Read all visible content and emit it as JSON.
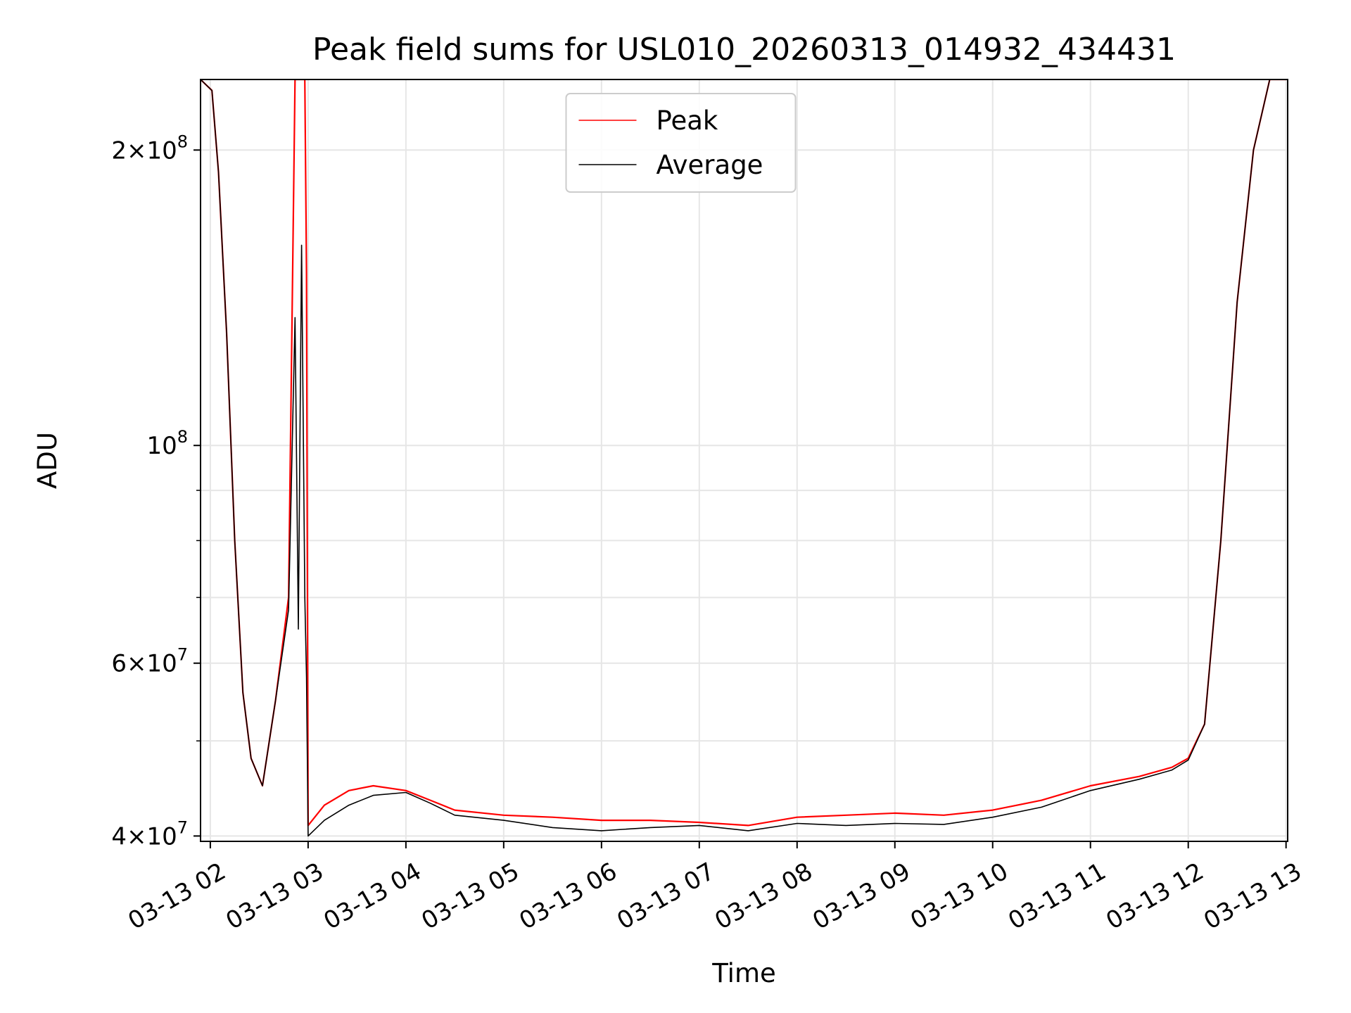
{
  "chart_data": {
    "type": "line",
    "title": "Peak field sums for USL010_20260313_014932_434431",
    "xlabel": "Time",
    "ylabel": "ADU",
    "yscale": "log",
    "xlim": [
      "2026-03-13T01:54",
      "2026-03-13T13:01"
    ],
    "ylim": [
      39500000,
      236000000
    ],
    "grid": true,
    "legend_position": "upper center",
    "x_tick_labels": [
      "03-13 02",
      "03-13 03",
      "03-13 04",
      "03-13 05",
      "03-13 06",
      "03-13 07",
      "03-13 08",
      "03-13 09",
      "03-13 10",
      "03-13 11",
      "03-13 12",
      "03-13 13"
    ],
    "x_ticks": [
      "2026-03-13T02:00",
      "2026-03-13T03:00",
      "2026-03-13T04:00",
      "2026-03-13T05:00",
      "2026-03-13T06:00",
      "2026-03-13T07:00",
      "2026-03-13T08:00",
      "2026-03-13T09:00",
      "2026-03-13T10:00",
      "2026-03-13T11:00",
      "2026-03-13T12:00",
      "2026-03-13T13:00"
    ],
    "y_tick_labels": [
      {
        "value": 40000000,
        "mantissa": "4",
        "exponent": "7"
      },
      {
        "value": 60000000,
        "mantissa": "6",
        "exponent": "7"
      },
      {
        "value": 100000000,
        "mantissa": "",
        "exponent": "8"
      },
      {
        "value": 200000000,
        "mantissa": "2",
        "exponent": "8"
      }
    ],
    "y_minor_gridlines": [
      50000000,
      70000000,
      80000000,
      90000000
    ],
    "series": [
      {
        "name": "Peak",
        "color": "#ff0000",
        "x": [
          "2026-03-13T01:54",
          "2026-03-13T02:01",
          "2026-03-13T02:05",
          "2026-03-13T02:10",
          "2026-03-13T02:15",
          "2026-03-13T02:20",
          "2026-03-13T02:25",
          "2026-03-13T02:32",
          "2026-03-13T02:40",
          "2026-03-13T02:48",
          "2026-03-13T02:52",
          "2026-03-13T02:54",
          "2026-03-13T02:56",
          "2026-03-13T02:58",
          "2026-03-13T02:59",
          "2026-03-13T03:00",
          "2026-03-13T03:10",
          "2026-03-13T03:25",
          "2026-03-13T03:40",
          "2026-03-13T04:00",
          "2026-03-13T04:15",
          "2026-03-13T04:30",
          "2026-03-13T05:00",
          "2026-03-13T05:30",
          "2026-03-13T06:00",
          "2026-03-13T06:30",
          "2026-03-13T07:00",
          "2026-03-13T07:30",
          "2026-03-13T08:00",
          "2026-03-13T08:30",
          "2026-03-13T09:00",
          "2026-03-13T09:30",
          "2026-03-13T10:00",
          "2026-03-13T10:30",
          "2026-03-13T11:00",
          "2026-03-13T11:30",
          "2026-03-13T11:50",
          "2026-03-13T12:00",
          "2026-03-13T12:10",
          "2026-03-13T12:20",
          "2026-03-13T12:30",
          "2026-03-13T12:40",
          "2026-03-13T12:50",
          "2026-03-13T12:56",
          "2026-03-13T13:00"
        ],
        "y": [
          236000000,
          230000000,
          190000000,
          130000000,
          80000000,
          56000000,
          48000000,
          45000000,
          55000000,
          70000000,
          236000000,
          236000000,
          236000000,
          236000000,
          150000000,
          41000000,
          43000000,
          44500000,
          45000000,
          44500000,
          43500000,
          42500000,
          42000000,
          41800000,
          41500000,
          41500000,
          41300000,
          41000000,
          41800000,
          42000000,
          42200000,
          42000000,
          42500000,
          43500000,
          45000000,
          46000000,
          47000000,
          48000000,
          52000000,
          80000000,
          140000000,
          200000000,
          236000000,
          236000000,
          236000000
        ]
      },
      {
        "name": "Average",
        "color": "#000000",
        "x": [
          "2026-03-13T01:54",
          "2026-03-13T02:01",
          "2026-03-13T02:05",
          "2026-03-13T02:10",
          "2026-03-13T02:15",
          "2026-03-13T02:20",
          "2026-03-13T02:25",
          "2026-03-13T02:32",
          "2026-03-13T02:40",
          "2026-03-13T02:48",
          "2026-03-13T02:52",
          "2026-03-13T02:54",
          "2026-03-13T02:56",
          "2026-03-13T02:58",
          "2026-03-13T02:59",
          "2026-03-13T03:00",
          "2026-03-13T03:10",
          "2026-03-13T03:25",
          "2026-03-13T03:40",
          "2026-03-13T04:00",
          "2026-03-13T04:15",
          "2026-03-13T04:30",
          "2026-03-13T05:00",
          "2026-03-13T05:30",
          "2026-03-13T06:00",
          "2026-03-13T06:30",
          "2026-03-13T07:00",
          "2026-03-13T07:30",
          "2026-03-13T08:00",
          "2026-03-13T08:30",
          "2026-03-13T09:00",
          "2026-03-13T09:30",
          "2026-03-13T10:00",
          "2026-03-13T10:30",
          "2026-03-13T11:00",
          "2026-03-13T11:30",
          "2026-03-13T11:50",
          "2026-03-13T12:00",
          "2026-03-13T12:10",
          "2026-03-13T12:20",
          "2026-03-13T12:30",
          "2026-03-13T12:40",
          "2026-03-13T12:50",
          "2026-03-13T12:56",
          "2026-03-13T13:00"
        ],
        "y": [
          236000000,
          230000000,
          190000000,
          130000000,
          80000000,
          56000000,
          48000000,
          45000000,
          55000000,
          68000000,
          135000000,
          65000000,
          160000000,
          70000000,
          58000000,
          40000000,
          41500000,
          43000000,
          44000000,
          44300000,
          43200000,
          42000000,
          41500000,
          40800000,
          40500000,
          40800000,
          41000000,
          40500000,
          41200000,
          41000000,
          41200000,
          41100000,
          41800000,
          42800000,
          44500000,
          45700000,
          46700000,
          47800000,
          52000000,
          80000000,
          140000000,
          200000000,
          236000000,
          236000000,
          236000000
        ]
      }
    ]
  }
}
